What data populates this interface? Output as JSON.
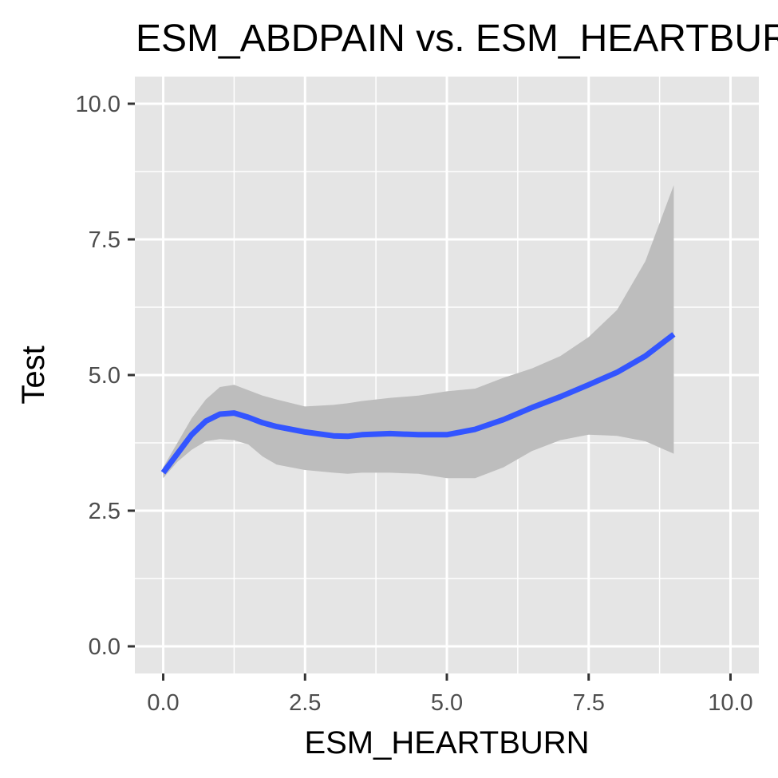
{
  "chart_data": {
    "type": "line",
    "title": "ESM_ABDPAIN vs. ESM_HEARTBURN",
    "xlabel": "ESM_HEARTBURN",
    "ylabel": "Test",
    "xlim": [
      -0.5,
      10.5
    ],
    "ylim": [
      -0.5,
      10.5
    ],
    "x_ticks": [
      0,
      2.5,
      5,
      7.5,
      10
    ],
    "x_tick_labels": [
      "0.0",
      "2.5",
      "5.0",
      "7.5",
      "10.0"
    ],
    "y_ticks": [
      0,
      2.5,
      5,
      7.5,
      10
    ],
    "y_tick_labels": [
      "0.0",
      "2.5",
      "5.0",
      "7.5",
      "10.0"
    ],
    "grid": true,
    "legend": "none",
    "colors": {
      "panel": "#e5e5e5",
      "grid": "#ffffff",
      "line": "#3355ff",
      "band": "#bdbdbd",
      "tick_text": "#4d4d4d",
      "tick_mark": "#333333"
    },
    "series": [
      {
        "x": [
          0,
          0.25,
          0.5,
          0.75,
          1.0,
          1.25,
          1.5,
          1.75,
          2.0,
          2.5,
          3.0,
          3.25,
          3.5,
          4.0,
          4.5,
          5.0,
          5.5,
          6.0,
          6.5,
          7.0,
          7.5,
          8.0,
          8.5,
          9.0
        ],
        "y": [
          3.2,
          3.55,
          3.9,
          4.15,
          4.28,
          4.3,
          4.22,
          4.12,
          4.05,
          3.95,
          3.88,
          3.87,
          3.9,
          3.92,
          3.9,
          3.9,
          4.0,
          4.18,
          4.4,
          4.6,
          4.82,
          5.05,
          5.35,
          5.75
        ],
        "ymin": [
          3.1,
          3.4,
          3.62,
          3.78,
          3.82,
          3.8,
          3.72,
          3.5,
          3.35,
          3.25,
          3.2,
          3.18,
          3.2,
          3.2,
          3.18,
          3.1,
          3.1,
          3.3,
          3.6,
          3.8,
          3.9,
          3.88,
          3.78,
          3.55
        ],
        "ymax": [
          3.3,
          3.75,
          4.2,
          4.55,
          4.78,
          4.82,
          4.72,
          4.62,
          4.55,
          4.42,
          4.45,
          4.48,
          4.52,
          4.58,
          4.62,
          4.7,
          4.75,
          4.95,
          5.12,
          5.35,
          5.7,
          6.2,
          7.1,
          8.5
        ]
      }
    ]
  }
}
